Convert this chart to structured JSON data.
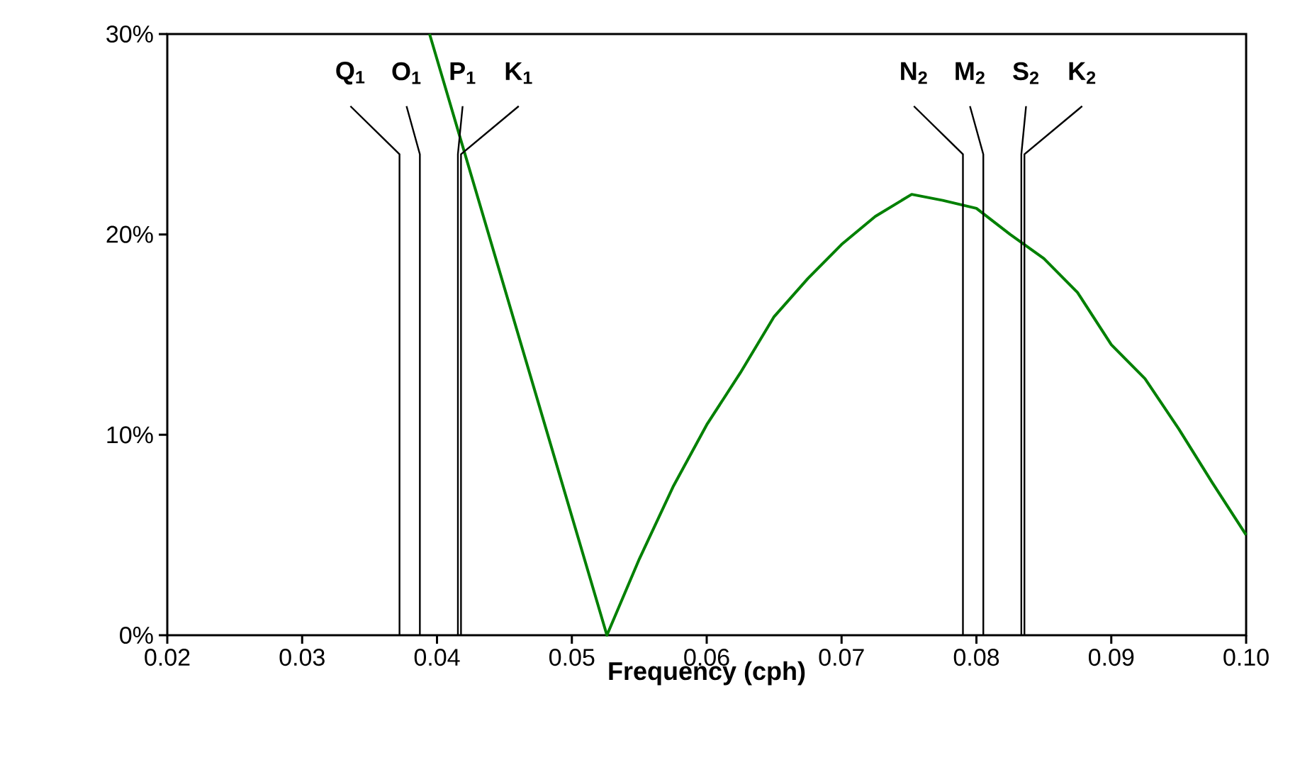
{
  "chart_data": {
    "type": "line",
    "xlabel": "Frequency (cph)",
    "x": [
      0.03945,
      0.0526,
      0.055,
      0.0575,
      0.06,
      0.0625,
      0.065,
      0.0675,
      0.07,
      0.0725,
      0.0752,
      0.0775,
      0.08,
      0.0825,
      0.085,
      0.0875,
      0.09,
      0.0925,
      0.095,
      0.0975,
      0.1
    ],
    "series": [
      {
        "color": "#008000",
        "values": [
          30,
          0,
          3.8,
          7.4,
          10.5,
          13.1,
          15.9,
          17.8,
          19.5,
          20.9,
          22.0,
          21.7,
          21.3,
          20.0,
          18.8,
          17.1,
          14.5,
          12.8,
          10.3,
          7.6,
          5.0
        ]
      }
    ],
    "xlim": [
      0.02,
      0.1
    ],
    "ylim": [
      0,
      30
    ],
    "xticks": [
      {
        "value": 0.02,
        "label": "0.02"
      },
      {
        "value": 0.03,
        "label": "0.03"
      },
      {
        "value": 0.04,
        "label": "0.04"
      },
      {
        "value": 0.05,
        "label": "0.05"
      },
      {
        "value": 0.06,
        "label": "0.06"
      },
      {
        "value": 0.07,
        "label": "0.07"
      },
      {
        "value": 0.08,
        "label": "0.08"
      },
      {
        "value": 0.09,
        "label": "0.09"
      },
      {
        "value": 0.1,
        "label": "0.10"
      }
    ],
    "yticks": [
      {
        "value": 0,
        "label": "0%"
      },
      {
        "value": 10,
        "label": "10%"
      },
      {
        "value": 20,
        "label": "20%"
      },
      {
        "value": 30,
        "label": "30%"
      }
    ],
    "ref_lines": [
      {
        "axis": "x",
        "value": 0.03722,
        "label": "Q$_{1}$"
      },
      {
        "axis": "x",
        "value": 0.03873,
        "label": "O$_{1}$"
      },
      {
        "axis": "x",
        "value": 0.04155,
        "label": "P$_{1}$"
      },
      {
        "axis": "x",
        "value": 0.04178,
        "label": "K$_{1}$"
      },
      {
        "axis": "x",
        "value": 0.079,
        "label": "N$_{2}$"
      },
      {
        "axis": "x",
        "value": 0.08051,
        "label": "M$_{2}$"
      },
      {
        "axis": "x",
        "value": 0.08333,
        "label": "S$_{2}$"
      },
      {
        "axis": "x",
        "value": 0.08356,
        "label": "K$_{2}$"
      }
    ],
    "grid": false,
    "marker": "none",
    "line_style": "solid"
  }
}
